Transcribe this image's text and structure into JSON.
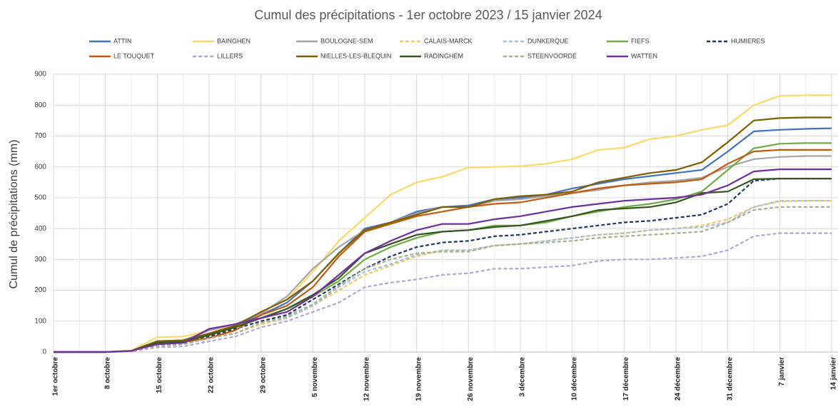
{
  "chart_data": {
    "type": "line",
    "title": "Cumul des précipitations  - 1er octobre 2023 / 15 janvier 2024",
    "y_label": "Cumul de précipitations (mm)",
    "categories": [
      "1er octobre",
      null,
      "8 octobre",
      null,
      "15 octobre",
      null,
      "22 octobre",
      null,
      "29 octobre",
      null,
      "5 novembre",
      null,
      "12 novembre",
      null,
      "19 novembre",
      null,
      "26 novembre",
      null,
      "3 décembre",
      null,
      "10 décembre",
      null,
      "17 décembre",
      null,
      "24 décembre",
      null,
      "31 décembre",
      null,
      "7 janvier",
      null,
      "14 janvier"
    ],
    "ylim": [
      0,
      900
    ],
    "yticks": [
      0,
      100,
      200,
      300,
      400,
      500,
      600,
      700,
      800,
      900
    ],
    "grid": true,
    "series": [
      {
        "name": "ATTIN",
        "color": "#4472c4",
        "dash": false,
        "values": [
          0,
          0,
          0,
          4,
          35,
          38,
          60,
          85,
          120,
          160,
          230,
          320,
          400,
          420,
          455,
          470,
          475,
          495,
          500,
          510,
          530,
          545,
          560,
          570,
          580,
          590,
          650,
          715,
          720,
          723,
          725
        ]
      },
      {
        "name": "BAINGHEN",
        "color": "#ffd966",
        "dash": false,
        "values": [
          0,
          0,
          0,
          5,
          48,
          50,
          70,
          85,
          130,
          170,
          260,
          360,
          435,
          510,
          550,
          568,
          598,
          600,
          602,
          610,
          625,
          655,
          662,
          690,
          700,
          720,
          735,
          800,
          830,
          832,
          832
        ]
      },
      {
        "name": "BOULOGNE-SEM",
        "color": "#a5a5a5",
        "dash": false,
        "values": [
          0,
          0,
          0,
          4,
          35,
          38,
          70,
          90,
          125,
          180,
          270,
          340,
          395,
          420,
          450,
          470,
          470,
          490,
          495,
          505,
          515,
          525,
          540,
          550,
          555,
          565,
          600,
          625,
          632,
          635,
          635
        ]
      },
      {
        "name": "CALAIS-MARCK",
        "color": "#f6c75a",
        "dash": true,
        "values": [
          0,
          0,
          0,
          3,
          20,
          25,
          45,
          60,
          90,
          110,
          150,
          200,
          250,
          280,
          310,
          330,
          330,
          345,
          350,
          360,
          370,
          380,
          385,
          395,
          400,
          410,
          430,
          470,
          488,
          490,
          490
        ]
      },
      {
        "name": "DUNKERQUE",
        "color": "#9dc3e6",
        "dash": true,
        "values": [
          0,
          0,
          0,
          3,
          20,
          25,
          45,
          60,
          95,
          110,
          150,
          210,
          260,
          285,
          315,
          330,
          330,
          345,
          350,
          360,
          370,
          380,
          385,
          395,
          400,
          405,
          420,
          470,
          490,
          490,
          490
        ]
      },
      {
        "name": "FIEFS",
        "color": "#70ad47",
        "dash": false,
        "values": [
          0,
          0,
          0,
          3,
          30,
          33,
          60,
          85,
          110,
          140,
          180,
          230,
          300,
          340,
          370,
          390,
          395,
          410,
          410,
          420,
          440,
          455,
          470,
          480,
          495,
          520,
          590,
          660,
          675,
          677,
          677
        ]
      },
      {
        "name": "HUMIERES",
        "color": "#203864",
        "dash": true,
        "values": [
          0,
          0,
          0,
          3,
          25,
          28,
          50,
          75,
          100,
          120,
          170,
          220,
          270,
          310,
          340,
          355,
          360,
          375,
          380,
          390,
          400,
          410,
          420,
          425,
          435,
          445,
          480,
          555,
          562,
          562,
          562
        ]
      },
      {
        "name": "LE TOUQUET",
        "color": "#c55a11",
        "dash": false,
        "values": [
          0,
          0,
          0,
          3,
          30,
          32,
          45,
          70,
          120,
          150,
          210,
          310,
          390,
          415,
          440,
          455,
          470,
          480,
          485,
          500,
          515,
          530,
          540,
          545,
          550,
          560,
          610,
          650,
          655,
          655,
          655
        ]
      },
      {
        "name": "LILLERS",
        "color": "#b4a7d6",
        "dash": true,
        "values": [
          0,
          0,
          0,
          2,
          15,
          18,
          35,
          50,
          80,
          100,
          130,
          160,
          210,
          225,
          235,
          250,
          255,
          270,
          270,
          275,
          280,
          295,
          300,
          300,
          305,
          310,
          330,
          375,
          385,
          385,
          385
        ]
      },
      {
        "name": "NIELLES-LES-BLEQUIN",
        "color": "#7f6000",
        "dash": false,
        "values": [
          0,
          0,
          0,
          4,
          35,
          38,
          60,
          85,
          130,
          170,
          230,
          320,
          395,
          420,
          445,
          470,
          470,
          495,
          505,
          510,
          520,
          550,
          565,
          580,
          590,
          615,
          680,
          750,
          758,
          760,
          760
        ]
      },
      {
        "name": "RADINGHEM",
        "color": "#375623",
        "dash": false,
        "values": [
          0,
          0,
          0,
          3,
          30,
          33,
          55,
          80,
          110,
          140,
          185,
          240,
          320,
          350,
          380,
          390,
          395,
          405,
          410,
          425,
          440,
          460,
          465,
          470,
          485,
          515,
          520,
          560,
          562,
          562,
          562
        ]
      },
      {
        "name": "STEENVOORDE",
        "color": "#a9b18f",
        "dash": true,
        "values": [
          0,
          0,
          0,
          3,
          20,
          25,
          45,
          60,
          95,
          115,
          155,
          215,
          270,
          300,
          320,
          325,
          325,
          345,
          350,
          355,
          360,
          370,
          375,
          380,
          385,
          390,
          420,
          460,
          470,
          470,
          470
        ]
      },
      {
        "name": "WATTEN",
        "color": "#7030a0",
        "dash": false,
        "values": [
          0,
          0,
          0,
          4,
          25,
          30,
          75,
          90,
          110,
          130,
          180,
          250,
          320,
          360,
          395,
          415,
          415,
          430,
          440,
          455,
          470,
          480,
          490,
          495,
          500,
          510,
          540,
          585,
          592,
          592,
          592
        ]
      }
    ]
  }
}
